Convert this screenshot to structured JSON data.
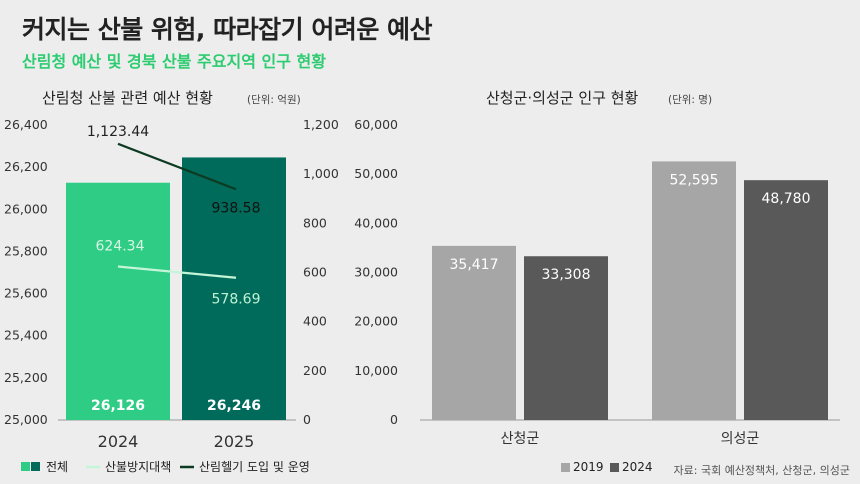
{
  "header": {
    "title": "커지는 산불 위험, 따라잡기 어려운 예산",
    "subtitle": "산림청 예산 및 경북 산불 주요지역 인구 현황"
  },
  "source": "자료: 국회 예산정책처, 산청군, 의성군",
  "chart_data": [
    {
      "type": "bar",
      "title": "산림청 산불 관련 예산 현황",
      "unit": "(단위: 억원)",
      "categories": [
        "2024",
        "2025"
      ],
      "bar_series": {
        "name": "전체",
        "values": [
          26126,
          26246
        ],
        "labels": [
          "26,126",
          "26,246"
        ],
        "colors": [
          "#2ecc85",
          "#006b5a"
        ],
        "axis": "left"
      },
      "line_series": [
        {
          "name": "산불방지대책",
          "values": [
            624.34,
            578.69
          ],
          "labels": [
            "624.34",
            "578.69"
          ],
          "color": "#c5f5d8",
          "axis": "right"
        },
        {
          "name": "산림헬기 도입 및 운영",
          "values": [
            1123.44,
            938.58
          ],
          "labels": [
            "1,123.44",
            "938.58"
          ],
          "color": "#0d3a22",
          "axis": "right"
        }
      ],
      "left_axis": {
        "min": 25000,
        "max": 26400,
        "ticks": [
          "25,000",
          "25,200",
          "25,400",
          "25,600",
          "25,800",
          "26,000",
          "26,200",
          "26,400"
        ]
      },
      "right_axis": {
        "min": 0,
        "max": 1200,
        "ticks": [
          "0",
          "200",
          "400",
          "600",
          "800",
          "1,000",
          "1,200"
        ]
      },
      "legend": [
        "전체",
        "산불방지대책",
        "산림헬기 도입 및 운영"
      ]
    },
    {
      "type": "bar",
      "title": "산청군·의성군 인구 현황",
      "unit": "(단위: 명)",
      "categories": [
        "산청군",
        "의성군"
      ],
      "series": [
        {
          "name": "2019",
          "values": [
            35417,
            52595
          ],
          "labels": [
            "35,417",
            "52,595"
          ],
          "color": "#a6a6a6"
        },
        {
          "name": "2024",
          "values": [
            33308,
            48780
          ],
          "labels": [
            "33,308",
            "48,780"
          ],
          "color": "#595959"
        }
      ],
      "y_axis": {
        "min": 0,
        "max": 60000,
        "ticks": [
          "0",
          "10,000",
          "20,000",
          "30,000",
          "40,000",
          "50,000",
          "60,000"
        ]
      },
      "legend": [
        "2019",
        "2024"
      ]
    }
  ]
}
